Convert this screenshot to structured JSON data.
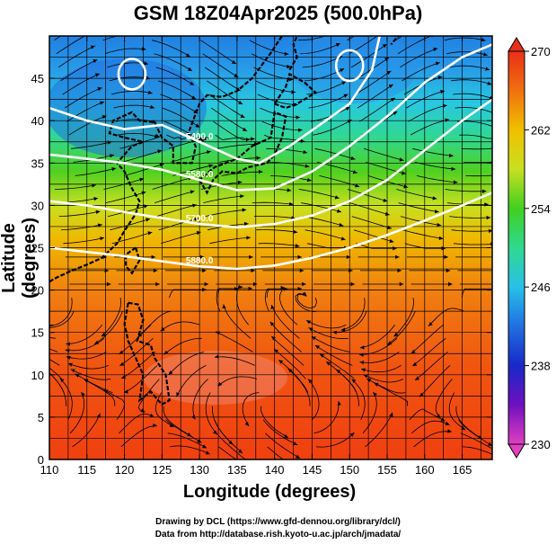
{
  "chart_data": {
    "type": "heatmap",
    "title": "GSM 18Z04Apr2025 (500.0hPa)",
    "xlabel": "Longitude (degrees)",
    "ylabel": "Latitude  (degrees)",
    "xlim": [
      110,
      169
    ],
    "ylim": [
      0,
      50
    ],
    "x_ticks": [
      "110",
      "115",
      "120",
      "125",
      "130",
      "135",
      "140",
      "145",
      "150",
      "155",
      "160",
      "165"
    ],
    "y_ticks": [
      "0",
      "5",
      "10",
      "15",
      "20",
      "25",
      "30",
      "35",
      "40",
      "45"
    ],
    "grid": true,
    "colorbar": {
      "min": 230,
      "max": 270,
      "ticks": [
        "230",
        "238",
        "246",
        "254",
        "262",
        "270"
      ],
      "colors": [
        "#e040c0",
        "#6010c0",
        "#1828c8",
        "#2070e0",
        "#28c0e8",
        "#30d890",
        "#40d020",
        "#b8e020",
        "#f0d000",
        "#f09010",
        "#f05010",
        "#e83018"
      ]
    },
    "contours": [
      {
        "label": "5880.0",
        "points": [
          [
            110,
            25
          ],
          [
            115,
            24.5
          ],
          [
            120,
            24
          ],
          [
            125,
            23.4
          ],
          [
            130,
            22.8
          ],
          [
            135,
            22.5
          ],
          [
            140,
            22.9
          ],
          [
            145,
            23.8
          ],
          [
            150,
            25
          ],
          [
            155,
            26.5
          ],
          [
            160,
            28.2
          ],
          [
            165,
            30
          ],
          [
            169,
            31.5
          ]
        ]
      },
      {
        "label": "5700.0",
        "points": [
          [
            110,
            30.5
          ],
          [
            115,
            30
          ],
          [
            120,
            29.2
          ],
          [
            125,
            28.5
          ],
          [
            130,
            27.8
          ],
          [
            135,
            27.4
          ],
          [
            140,
            27.8
          ],
          [
            145,
            28.8
          ],
          [
            150,
            30.5
          ],
          [
            155,
            33
          ],
          [
            160,
            36.5
          ],
          [
            165,
            40
          ],
          [
            169,
            42.5
          ]
        ]
      },
      {
        "label": "5580.0",
        "points": [
          [
            110,
            36
          ],
          [
            115,
            35.5
          ],
          [
            120,
            35
          ],
          [
            125,
            34.2
          ],
          [
            130,
            33
          ],
          [
            135,
            31.8
          ],
          [
            140,
            32
          ],
          [
            145,
            34
          ],
          [
            150,
            37
          ],
          [
            155,
            40.5
          ],
          [
            160,
            44.5
          ],
          [
            165,
            47.5
          ],
          [
            169,
            49
          ]
        ]
      },
      {
        "label": "5400.0",
        "points": [
          [
            110,
            41.5
          ],
          [
            115,
            40
          ],
          [
            120,
            39
          ],
          [
            125,
            39.5
          ],
          [
            130,
            37.5
          ],
          [
            135,
            35.5
          ],
          [
            138,
            35
          ],
          [
            142,
            37
          ],
          [
            146,
            39.5
          ],
          [
            150,
            42
          ],
          [
            153,
            46
          ],
          [
            154,
            50
          ]
        ]
      }
    ],
    "lows": [
      {
        "x": 121,
        "y": 45.5
      },
      {
        "x": 150,
        "y": 46.5
      }
    ]
  },
  "credits": {
    "line1": "Drawing by DCL (https://www.gfd-dennou.org/library/dcl/)",
    "line2": "Data from http://database.rish.kyoto-u.ac.jp/arch/jmadata/"
  }
}
